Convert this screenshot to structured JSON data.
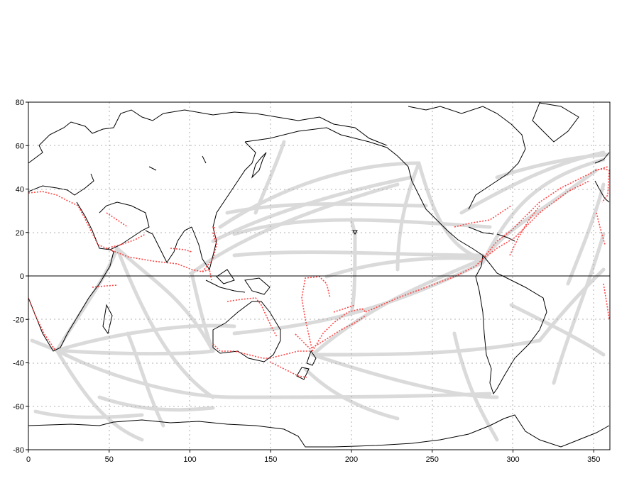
{
  "map": {
    "projection": "equirectangular",
    "lon_range": [
      0,
      360
    ],
    "lat_range": [
      -80,
      80
    ],
    "x_ticks": [
      "0",
      "50",
      "100",
      "150",
      "200",
      "250",
      "300",
      "350"
    ],
    "x_tick_values": [
      0,
      50,
      100,
      150,
      200,
      250,
      300,
      350
    ],
    "y_ticks": [
      "80",
      "60",
      "40",
      "20",
      "0",
      "-20",
      "-40",
      "-60",
      "-80"
    ],
    "y_tick_values": [
      80,
      60,
      40,
      20,
      0,
      -20,
      -40,
      -60,
      -80
    ],
    "grid": true,
    "grid_style": "dotted",
    "equator_line": true,
    "colors": {
      "coastline": "#000000",
      "ship_tracks": "#d9d9d9",
      "highlighted_tracks": "#ff2a2a",
      "grid": "#9a9a9a"
    },
    "layers": [
      "coastlines",
      "ship-track-density (grey)",
      "highlighted ship tracks (red)"
    ]
  }
}
